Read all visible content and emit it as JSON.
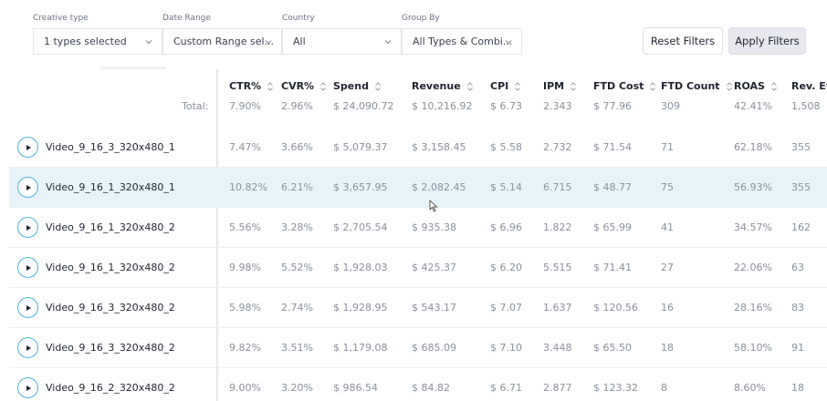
{
  "filters": {
    "creative_type": {
      "label": "Creative type",
      "value": "1 types selected"
    },
    "date_range": {
      "label": "Date Range",
      "value": "Custom Range sel..."
    },
    "country": {
      "label": "Country",
      "value": "All"
    },
    "group_by": {
      "label": "Group By",
      "value": "All Types & Combi..."
    }
  },
  "buttons": {
    "reset": "Reset Filters",
    "apply": "Apply Filters"
  },
  "table": {
    "columns": [
      "CTR%",
      "CVR%",
      "Spend",
      "Revenue",
      "CPI",
      "IPM",
      "FTD Cost",
      "FTD Count",
      "ROAS",
      "Rev. Eve"
    ],
    "total_label": "Total:",
    "totals": [
      "7.90%",
      "2.96%",
      "$ 24,090.72",
      "$ 10,216.92",
      "$ 6.73",
      "2.343",
      "$ 77.96",
      "309",
      "42.41%",
      "1,508"
    ],
    "rows": [
      {
        "name": "Video_9_16_3_320x480_1",
        "cells": [
          "7.47%",
          "3.66%",
          "$ 5,079.37",
          "$ 3,158.45",
          "$ 5.58",
          "2.732",
          "$ 71.54",
          "71",
          "62.18%",
          "355"
        ]
      },
      {
        "name": "Video_9_16_1_320x480_1",
        "cells": [
          "10.82%",
          "6.21%",
          "$ 3,657.95",
          "$ 2,082.45",
          "$ 5.14",
          "6.715",
          "$ 48.77",
          "75",
          "56.93%",
          "355"
        ]
      },
      {
        "name": "Video_9_16_1_320x480_2",
        "cells": [
          "5.56%",
          "3.28%",
          "$ 2,705.54",
          "$ 935.38",
          "$ 6.96",
          "1.822",
          "$ 65.99",
          "41",
          "34.57%",
          "162"
        ]
      },
      {
        "name": "Video_9_16_1_320x480_2",
        "cells": [
          "9.98%",
          "5.52%",
          "$ 1,928.03",
          "$ 425.37",
          "$ 6.20",
          "5.515",
          "$ 71.41",
          "27",
          "22.06%",
          "63"
        ]
      },
      {
        "name": "Video_9_16_3_320x480_2",
        "cells": [
          "5.98%",
          "2.74%",
          "$ 1,928.95",
          "$ 543.17",
          "$ 7.07",
          "1.637",
          "$ 120.56",
          "16",
          "28.16%",
          "83"
        ]
      },
      {
        "name": "Video_9_16_3_320x480_2",
        "cells": [
          "9.82%",
          "3.51%",
          "$ 1,179.08",
          "$ 685.09",
          "$ 7.10",
          "3.448",
          "$ 65.50",
          "18",
          "58.10%",
          "91"
        ]
      },
      {
        "name": "Video_9_16_2_320x480_2",
        "cells": [
          "9.00%",
          "3.20%",
          "$ 986.54",
          "$ 84.82",
          "$ 6.71",
          "2.877",
          "$ 123.32",
          "8",
          "8.60%",
          "18"
        ]
      }
    ]
  },
  "colors": {
    "accent": "#4fb3d9",
    "highlight_row": "#e6f4fa",
    "muted_text": "#8a919c"
  },
  "icons": {
    "select_chevron": "chevron-down-icon",
    "sort": "sort-arrows-icon",
    "play": "play-icon",
    "cursor": "mouse-cursor-icon"
  }
}
